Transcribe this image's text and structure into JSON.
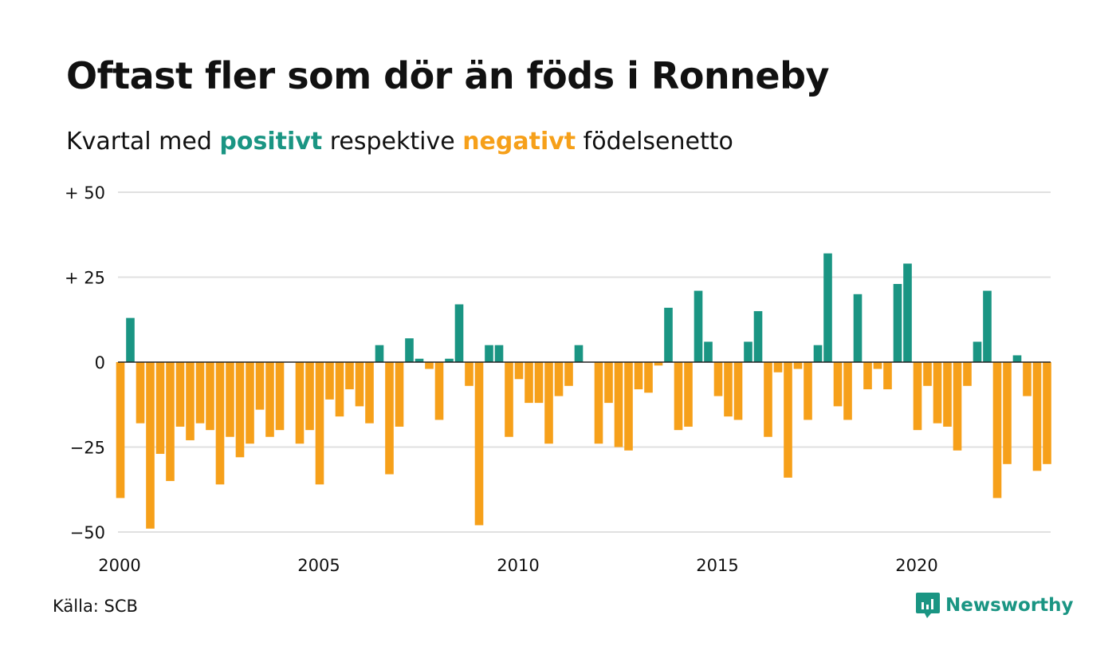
{
  "title": "Oftast fler som dör än föds i Ronneby",
  "subtitle": {
    "before": "Kvartal med ",
    "positive": "positivt",
    "middle": " respektive ",
    "negative": "negativt",
    "after": " födelsenetto"
  },
  "source": "Källa: SCB",
  "logo": {
    "text": "Newsworthy",
    "icon": "newsworthy-chart-bubble-icon"
  },
  "colors": {
    "positive": "#1a9583",
    "negative": "#f6a01a",
    "grid": "#e0e0e0",
    "zero": "#222222"
  },
  "chart_data": {
    "type": "bar",
    "title": "Oftast fler som dör än föds i Ronneby",
    "subtitle": "Kvartal med positivt respektive negativt födelsenetto",
    "x_start": 2000.0,
    "x_step": 0.25,
    "xlim": [
      2000,
      2023.5
    ],
    "x_ticks": [
      2000,
      2005,
      2010,
      2015,
      2020
    ],
    "x_tick_labels": [
      "2000",
      "2005",
      "2010",
      "2015",
      "2020"
    ],
    "ylim": [
      -50,
      50
    ],
    "y_ticks": [
      50,
      25,
      0,
      -25,
      -50
    ],
    "y_tick_labels": [
      "+ 50",
      "+ 25",
      "0",
      "−25",
      "−50"
    ],
    "grid": true,
    "values": [
      -40,
      13,
      -18,
      -49,
      -27,
      -35,
      -19,
      -23,
      -18,
      -20,
      -36,
      -22,
      -28,
      -24,
      -14,
      -22,
      -20,
      0,
      -24,
      -20,
      -36,
      -11,
      -16,
      -8,
      -13,
      -18,
      5,
      -33,
      -19,
      7,
      1,
      -2,
      -17,
      1,
      17,
      -7,
      -48,
      5,
      5,
      -22,
      -5,
      -12,
      -12,
      -24,
      -10,
      -7,
      5,
      0,
      -24,
      -12,
      -25,
      -26,
      -8,
      -9,
      -1,
      16,
      -20,
      -19,
      21,
      6,
      -10,
      -16,
      -17,
      6,
      15,
      -22,
      -3,
      -34,
      -2,
      -17,
      5,
      32,
      -13,
      -17,
      20,
      -8,
      -2,
      -8,
      23,
      29,
      -20,
      -7,
      -18,
      -19,
      -26,
      -7,
      6,
      21,
      -40,
      -30,
      2,
      -10,
      -32,
      -30
    ]
  }
}
